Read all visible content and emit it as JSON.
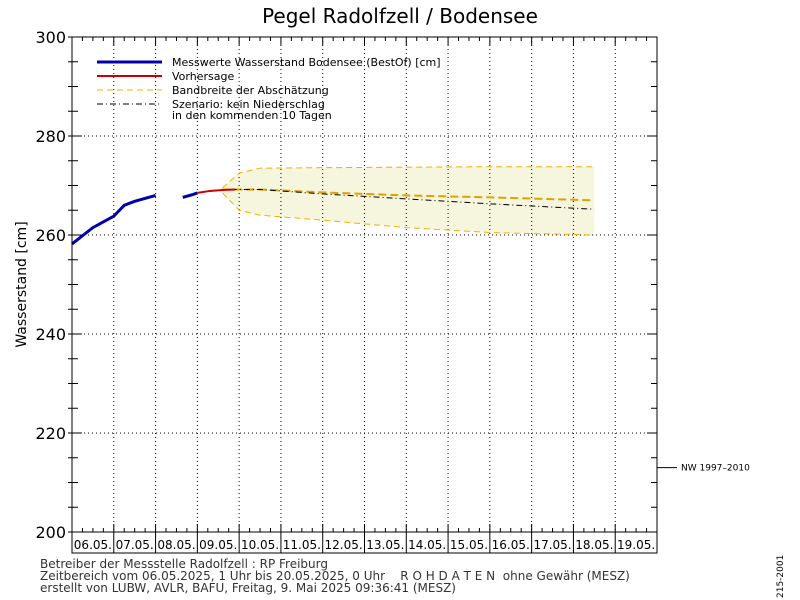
{
  "chart_data": {
    "type": "line",
    "title": "Pegel Radolfzell / Bodensee",
    "ylabel": "Wasserstand  [cm]",
    "xlabel": "",
    "ylim": [
      200,
      300
    ],
    "yticks": [
      200,
      220,
      240,
      260,
      280,
      300
    ],
    "categories": [
      "06.05.",
      "07.05.",
      "08.05.",
      "09.05.",
      "10.05.",
      "11.05.",
      "12.05.",
      "13.05.",
      "14.05.",
      "15.05.",
      "16.05.",
      "17.05.",
      "18.05.",
      "19.05."
    ],
    "xlim_days": [
      0,
      14
    ],
    "grid": true,
    "legend_position": "top-left",
    "legend": [
      "Messwerte Wasserstand Bodensee (BestOf)  [cm]",
      "Vorhersage",
      "Bandbreite der Abschätzung",
      "Szenario: kein Niederschlag",
      "in den kommenden 10 Tagen"
    ],
    "series": [
      {
        "name": "Messwerte Wasserstand Bodensee (BestOf)  [cm]",
        "kind": "measured",
        "color": "#0000aa",
        "segments": [
          {
            "x": [
              0.0,
              0.5,
              1.0,
              1.25,
              1.5,
              2.0
            ],
            "y": [
              258.2,
              261.5,
              263.8,
              266.0,
              266.8,
              268.0
            ]
          },
          {
            "x": [
              2.65,
              2.9,
              3.0
            ],
            "y": [
              267.6,
              268.2,
              268.5
            ]
          }
        ]
      },
      {
        "name": "Vorhersage",
        "kind": "forecast",
        "color": "#cc0000",
        "x": [
          3.0,
          3.3,
          3.6,
          3.9
        ],
        "y": [
          268.5,
          268.9,
          269.1,
          269.2
        ]
      },
      {
        "name": "Bandbreite der Abschätzung",
        "kind": "band",
        "color": "#f0b000",
        "x": [
          3.6,
          4.0,
          4.5,
          6,
          8,
          10,
          12.5
        ],
        "upper": [
          269.5,
          272.5,
          273.5,
          273.6,
          273.7,
          273.8,
          273.8
        ],
        "lower": [
          268.5,
          265.0,
          264.0,
          263.0,
          261.5,
          260.5,
          260.0
        ],
        "median_x": [
          3.6,
          4.5,
          6,
          8,
          10,
          12.5
        ],
        "median_y": [
          269.2,
          269.2,
          268.6,
          268.0,
          267.6,
          267.0
        ]
      },
      {
        "name": "Szenario: kein Niederschlag",
        "kind": "scenario",
        "color": "#000000",
        "x": [
          3.8,
          4.5,
          6,
          8,
          10,
          12.5
        ],
        "y": [
          269.2,
          269.2,
          268.3,
          267.3,
          266.3,
          265.2
        ]
      }
    ],
    "annotations": [
      {
        "text": "NW 1997–2010",
        "y": 213
      }
    ]
  },
  "footer": {
    "line1": "Betreiber der Messstelle Radolfzell : RP Freiburg",
    "line2": "Zeitbereich vom 06.05.2025, 1 Uhr bis 20.05.2025, 0 Uhr    R O H D A T E N  ohne Gewähr (MESZ)",
    "line3": "erstellt von LUBW, AVLR, BAFU, Freitag, 9. Mai 2025 09:36:41 (MESZ)"
  },
  "side_id": "215-2001",
  "colors": {
    "measured": "#0000aa",
    "forecast": "#cc0000",
    "band_fill": "#f6f6df",
    "band_line": "#f0b000"
  }
}
